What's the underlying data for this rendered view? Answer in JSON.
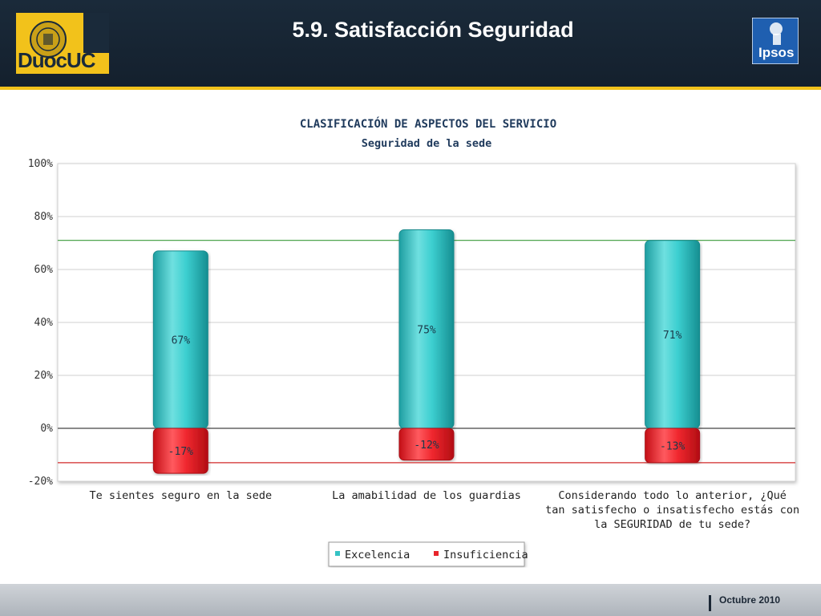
{
  "header": {
    "title": "5.9. Satisfacción Seguridad",
    "left_logo_text": "DuocUC",
    "right_logo_text": "Ipsos"
  },
  "footer": {
    "date": "Octubre 2010"
  },
  "colors": {
    "excelencia": "#34c2c4",
    "insuficiencia": "#e8242b",
    "excelencia_threshold_line": "#3a9a3a",
    "insuficiencia_threshold_line": "#d22a2a",
    "header_bg": "#1a2a3a",
    "header_accent": "#f2c21b"
  },
  "chart_data": {
    "type": "bar",
    "title": "CLASIFICACIÓN DE ASPECTOS DEL SERVICIO",
    "subtitle": "Seguridad de la sede",
    "categories": [
      [
        "Te sientes seguro en la sede"
      ],
      [
        "La amabilidad de los guardias"
      ],
      [
        "Considerando todo lo anterior, ¿Qué",
        "tan satisfecho o insatisfecho estás con",
        "la SEGURIDAD de tu sede?"
      ]
    ],
    "series": [
      {
        "name": "Excelencia",
        "values": [
          67,
          75,
          71
        ],
        "labels": [
          "67%",
          "75%",
          "71%"
        ]
      },
      {
        "name": "Insuficiencia",
        "values": [
          -17,
          -12,
          -13
        ],
        "labels": [
          "-17%",
          "-12%",
          "-13%"
        ]
      }
    ],
    "ylim": [
      -20,
      100
    ],
    "yticks": [
      100,
      80,
      60,
      40,
      20,
      0,
      -20
    ],
    "ytick_labels": [
      "100%",
      "80%",
      "60%",
      "40%",
      "20%",
      "0%",
      "-20%"
    ],
    "reference_lines": [
      {
        "value": 71
      },
      {
        "value": -13
      }
    ],
    "grid": true,
    "legend_position": "bottom-center",
    "stacked": true
  }
}
